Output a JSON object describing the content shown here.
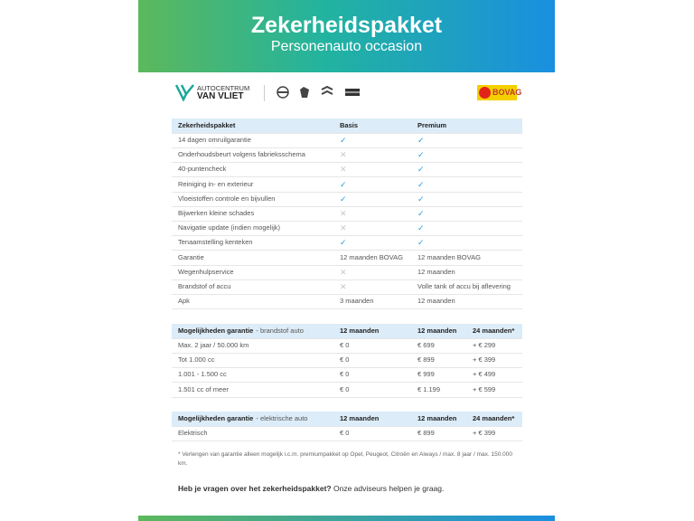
{
  "header": {
    "title": "Zekerheidspakket",
    "subtitle": "Personenauto occasion"
  },
  "logos": {
    "dealer_line1": "AUTOCENTRUM",
    "dealer_line2": "VAN VLIET",
    "bovag": "BOVAG"
  },
  "package_table": {
    "header": [
      "Zekerheidspakket",
      "Basis",
      "Premium"
    ],
    "rows": [
      [
        "14 dagen omruilgarantie",
        "✓",
        "✓"
      ],
      [
        "Onderhoudsbeurt volgens fabrieksschema",
        "✕",
        "✓"
      ],
      [
        "40-puntencheck",
        "✕",
        "✓"
      ],
      [
        "Reiniging in- en exterieur",
        "✓",
        "✓"
      ],
      [
        "Vloeistoffen controle en bijvullen",
        "✓",
        "✓"
      ],
      [
        "Bijwerken kleine schades",
        "✕",
        "✓"
      ],
      [
        "Navigatie update (indien mogelijk)",
        "✕",
        "✓"
      ],
      [
        "Tenaamstelling kenteken",
        "✓",
        "✓"
      ],
      [
        "Garantie",
        "12 maanden BOVAG",
        "12 maanden BOVAG"
      ],
      [
        "Wegenhulpservice",
        "✕",
        "12 maanden"
      ],
      [
        "Brandstof of accu",
        "✕",
        "Volle tank of accu bij aflevering"
      ],
      [
        "Apk",
        "3 maanden",
        "12 maanden"
      ]
    ]
  },
  "warranty_fuel": {
    "title": "Mogelijkheden garantie",
    "subtitle": "- brandstof auto",
    "columns": [
      "12 maanden",
      "12 maanden",
      "24 maanden*"
    ],
    "rows": [
      [
        "Max. 2 jaar / 50.000 km",
        "€ 0",
        "€ 699",
        "+ € 299"
      ],
      [
        "Tot 1.000 cc",
        "€ 0",
        "€ 899",
        "+ € 399"
      ],
      [
        "1.001 - 1.500 cc",
        "€ 0",
        "€ 999",
        "+ € 499"
      ],
      [
        "1.501 cc of meer",
        "€ 0",
        "€ 1.199",
        "+ € 599"
      ]
    ]
  },
  "warranty_electric": {
    "title": "Mogelijkheden garantie",
    "subtitle": "- elektrische auto",
    "columns": [
      "12 maanden",
      "12 maanden",
      "24 maanden*"
    ],
    "rows": [
      [
        "Elektrisch",
        "€ 0",
        "€ 899",
        "+ € 399"
      ]
    ]
  },
  "footnote": "* Verlengen van garantie alleen mogelijk i.c.m. premiumpakket op Opel, Peugeot, Citroën en Aiways / max. 8 jaar / max. 150.000 km.",
  "contact": {
    "question": "Heb je vragen over het zekerheidspakket?",
    "answer": "Onze adviseurs helpen je graag."
  }
}
